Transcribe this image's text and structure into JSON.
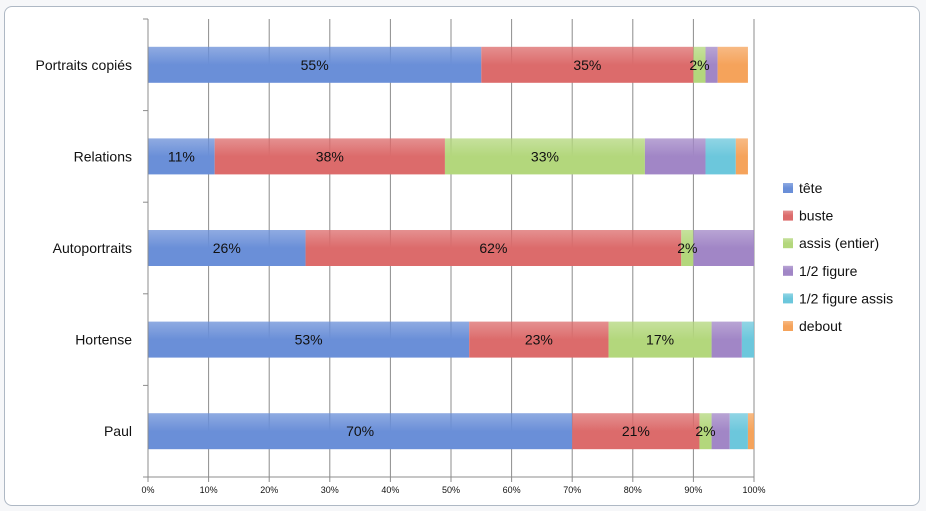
{
  "chart_data": {
    "type": "bar",
    "orientation": "horizontal",
    "stacked": "percent",
    "categories": [
      "Portraits copiés",
      "Relations",
      "Autoportraits",
      "Hortense",
      "Paul"
    ],
    "x_ticks": [
      "0%",
      "10%",
      "20%",
      "30%",
      "40%",
      "50%",
      "60%",
      "70%",
      "80%",
      "90%",
      "100%"
    ],
    "xlim": [
      0,
      100
    ],
    "grid": true,
    "legend_position": "right",
    "series": [
      {
        "name": "tête",
        "color": "#6a8fd8",
        "values": [
          55,
          11,
          26,
          53,
          70
        ],
        "labels": [
          "55%",
          "11%",
          "26%",
          "53%",
          "70%"
        ]
      },
      {
        "name": "buste",
        "color": "#dc6b6b",
        "values": [
          35,
          38,
          62,
          23,
          21
        ],
        "labels": [
          "35%",
          "38%",
          "62%",
          "23%",
          "21%"
        ]
      },
      {
        "name": "assis (entier)",
        "color": "#b3d77c",
        "values": [
          2,
          33,
          2,
          17,
          2
        ],
        "labels": [
          "2%",
          "33%",
          "2%",
          "17%",
          "2%"
        ]
      },
      {
        "name": "1/2 figure",
        "color": "#a186c6",
        "values": [
          2,
          10,
          10,
          5,
          3
        ],
        "labels": [
          "",
          "",
          "",
          "",
          ""
        ]
      },
      {
        "name": "1/2 figure assis",
        "color": "#6cc7dc",
        "values": [
          0,
          5,
          0,
          2,
          3
        ],
        "labels": [
          "",
          "",
          "",
          "",
          ""
        ]
      },
      {
        "name": "debout",
        "color": "#f5a35b",
        "values": [
          5,
          2,
          0,
          0,
          1
        ],
        "labels": [
          "",
          "",
          "",
          "",
          ""
        ]
      }
    ]
  }
}
